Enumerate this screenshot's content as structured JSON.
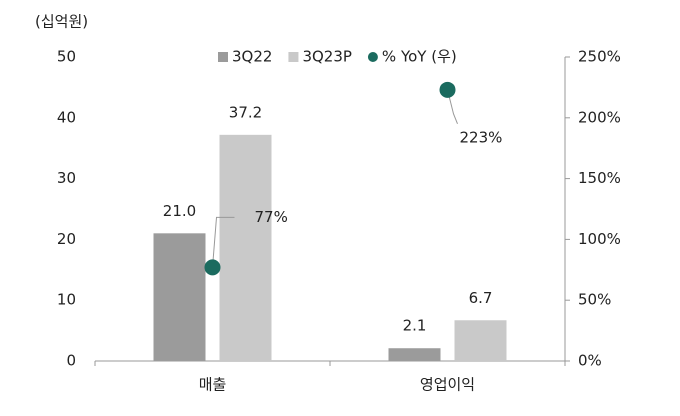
{
  "chart_data": {
    "type": "bar",
    "y_label": "(십억원)",
    "categories": [
      "매출",
      "영업이익"
    ],
    "series": [
      {
        "name": "3Q22",
        "color": "#9b9b9b",
        "values": [
          21.0,
          2.1
        ],
        "value_labels": [
          "21.0",
          "2.1"
        ]
      },
      {
        "name": "3Q23P",
        "color": "#c9c9c9",
        "values": [
          37.2,
          6.7
        ],
        "value_labels": [
          "37.2",
          "6.7"
        ]
      },
      {
        "name": "% YoY (우)",
        "type": "scatter",
        "axis": "y2",
        "color": "#1b6b5f",
        "values": [
          77,
          223
        ],
        "value_labels": [
          "77%",
          "223%"
        ]
      }
    ],
    "ylim": [
      0,
      50
    ],
    "yticks": [
      0,
      10,
      20,
      30,
      40,
      50
    ],
    "y2lim": [
      0,
      250
    ],
    "y2ticks": [
      {
        "value": 0,
        "label": "0%"
      },
      {
        "value": 50,
        "label": "50%"
      },
      {
        "value": 100,
        "label": "100%"
      },
      {
        "value": 150,
        "label": "150%"
      },
      {
        "value": 200,
        "label": "200%"
      },
      {
        "value": 250,
        "label": "250%"
      }
    ],
    "legend": "top"
  }
}
